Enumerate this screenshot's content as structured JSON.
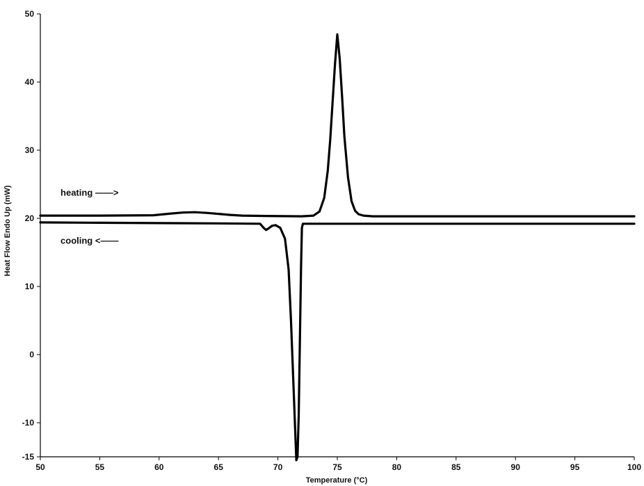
{
  "chart_data": {
    "type": "line",
    "title": "",
    "xlabel": "Temperature (°C)",
    "ylabel": "Heat Flow Endo Up (mW)",
    "xlim": [
      50,
      100
    ],
    "ylim": [
      -15,
      50
    ],
    "x_ticks": [
      50,
      55,
      60,
      65,
      70,
      75,
      80,
      85,
      90,
      95,
      100
    ],
    "y_ticks": [
      -15,
      -10,
      0,
      10,
      20,
      30,
      40,
      50
    ],
    "y_tick_labels": [
      "-15",
      "-10",
      "0",
      "10",
      "20",
      "30",
      "40",
      "50"
    ],
    "grid": false,
    "line_color": "#000000",
    "series": [
      {
        "name": "heating",
        "x": [
          50,
          55,
          59.5,
          61,
          62,
          63,
          64,
          65,
          66,
          67,
          69,
          72,
          73,
          73.5,
          73.9,
          74.2,
          74.4,
          74.6,
          74.8,
          75,
          75.2,
          75.4,
          75.6,
          75.9,
          76.2,
          76.5,
          76.8,
          77.2,
          78,
          85,
          100
        ],
        "y": [
          20.4,
          20.4,
          20.45,
          20.7,
          20.85,
          20.9,
          20.8,
          20.65,
          20.5,
          20.4,
          20.35,
          20.3,
          20.4,
          21.0,
          23.0,
          27.0,
          31.5,
          37.0,
          42.5,
          47.0,
          43.5,
          38.0,
          32.0,
          26.0,
          22.5,
          21.1,
          20.6,
          20.4,
          20.3,
          20.3,
          20.3
        ]
      },
      {
        "name": "cooling",
        "x": [
          50,
          55,
          60,
          65,
          68.5,
          68.8,
          69,
          69.2,
          69.5,
          69.8,
          70.2,
          70.6,
          70.9,
          71.1,
          71.3,
          71.45,
          71.55,
          71.65,
          71.75,
          71.85,
          71.95,
          72.02,
          72.1,
          75,
          85,
          100
        ],
        "y": [
          19.4,
          19.35,
          19.3,
          19.25,
          19.2,
          18.6,
          18.3,
          18.5,
          18.9,
          19.0,
          18.6,
          17.0,
          12.5,
          5.0,
          -4.0,
          -11.0,
          -15.5,
          -15.0,
          -9.0,
          2.0,
          13.0,
          18.6,
          19.2,
          19.2,
          19.2,
          19.2
        ]
      }
    ],
    "annotations": [
      {
        "text": "heating ——>",
        "x": 51.7,
        "y": 23.3
      },
      {
        "text": "cooling <——",
        "x": 51.7,
        "y": 16.3
      }
    ]
  }
}
